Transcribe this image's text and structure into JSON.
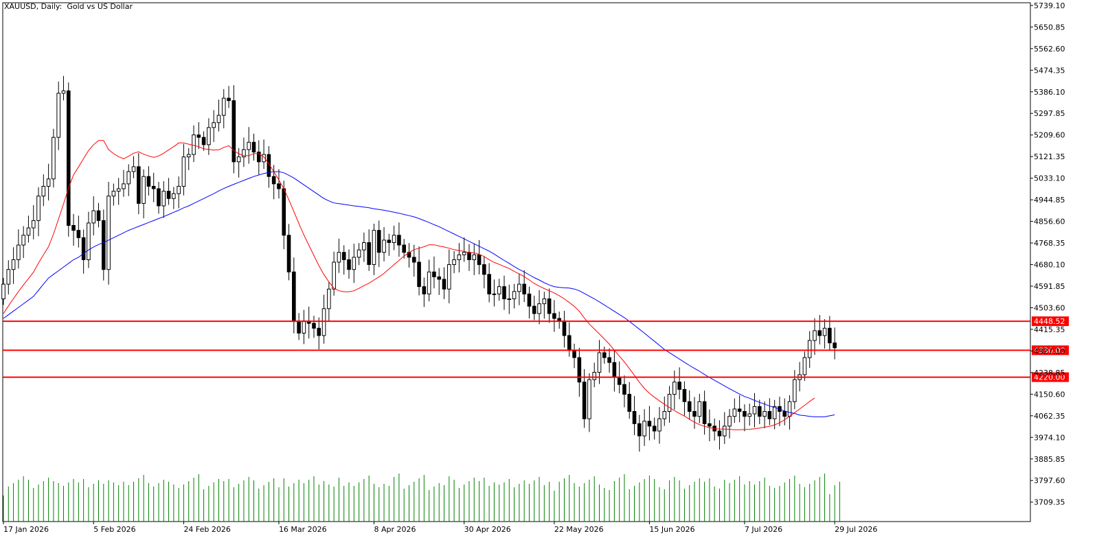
{
  "window": {
    "symbol_title": "XAUUSD, Daily:  Gold vs US Dollar"
  },
  "colors": {
    "background": "#ffffff",
    "frame": "#000000",
    "candle_bull_body": "#ffffff",
    "candle_bear_body": "#000000",
    "ma_fast": "#ff0000",
    "ma_slow": "#0000ff",
    "volume": "#008000",
    "level_line": "#ff0000",
    "level_label_bg": "#ff0000",
    "level_label_text": "#ffffff"
  },
  "chart_data": {
    "type": "candlestick",
    "symbol": "XAUUSD",
    "timeframe": "Daily",
    "ylim": [
      3630,
      5750
    ],
    "price_ticks": [
      5739.1,
      5650.85,
      5562.6,
      5474.35,
      5386.1,
      5297.85,
      5209.6,
      5121.35,
      5033.1,
      4944.85,
      4856.6,
      4768.35,
      4680.1,
      4591.85,
      4503.6,
      4415.35,
      4327.1,
      4238.85,
      4150.6,
      4062.35,
      3974.1,
      3885.85,
      3797.6,
      3709.35
    ],
    "price_tick_labels": [
      "5739.10",
      "5650.85",
      "5562.60",
      "5474.35",
      "5386.10",
      "5297.85",
      "5209.60",
      "5121.35",
      "5033.10",
      "4944.85",
      "4856.60",
      "4768.35",
      "4680.10",
      "4591.85",
      "4503.60",
      "4415.35",
      "4327.10",
      "4238.85",
      "4150.60",
      "4062.35",
      "3974.10",
      "3885.85",
      "3797.60",
      "3709.35"
    ],
    "date_ticks": [
      {
        "index": 0,
        "label": "17 Jan 2026"
      },
      {
        "index": 18,
        "label": "5 Feb 2026"
      },
      {
        "index": 36,
        "label": "24 Feb 2026"
      },
      {
        "index": 55,
        "label": "16 Mar 2026"
      },
      {
        "index": 74,
        "label": "8 Apr 2026"
      },
      {
        "index": 92,
        "label": "30 Apr 2026"
      },
      {
        "index": 110,
        "label": "22 May 2026"
      },
      {
        "index": 129,
        "label": "15 Jun 2026"
      },
      {
        "index": 148,
        "label": "7 Jul 2026"
      },
      {
        "index": 166,
        "label": "29 Jul 2026"
      }
    ],
    "closes": [
      4600,
      4660,
      4700,
      4760,
      4800,
      4830,
      4860,
      4960,
      5000,
      5030,
      5200,
      5380,
      5390,
      4840,
      4820,
      4790,
      4700,
      4850,
      4900,
      4860,
      4660,
      4960,
      4980,
      4990,
      5010,
      5060,
      5080,
      4930,
      5040,
      5000,
      4990,
      4920,
      4980,
      4950,
      4970,
      5000,
      5120,
      5130,
      5210,
      5200,
      5170,
      5240,
      5260,
      5290,
      5360,
      5350,
      5100,
      5120,
      5150,
      5180,
      5140,
      5100,
      5130,
      5040,
      5010,
      4990,
      4800,
      4650,
      4450,
      4400,
      4450,
      4440,
      4420,
      4390,
      4500,
      4580,
      4690,
      4730,
      4700,
      4660,
      4710,
      4740,
      4770,
      4680,
      4820,
      4730,
      4780,
      4770,
      4800,
      4760,
      4730,
      4710,
      4690,
      4590,
      4560,
      4650,
      4630,
      4620,
      4580,
      4680,
      4700,
      4720,
      4730,
      4700,
      4720,
      4680,
      4640,
      4560,
      4560,
      4590,
      4540,
      4540,
      4570,
      4600,
      4560,
      4510,
      4480,
      4520,
      4540,
      4480,
      4460,
      4450,
      4390,
      4330,
      4300,
      4200,
      4050,
      4210,
      4240,
      4320,
      4300,
      4280,
      4220,
      4190,
      4150,
      4080,
      4030,
      3980,
      4040,
      4020,
      4000,
      4050,
      4080,
      4150,
      4200,
      4170,
      4120,
      4080,
      4060,
      4120,
      4030,
      4020,
      4000,
      3980,
      4020,
      4060,
      4090,
      4080,
      4060,
      4070,
      4100,
      4060,
      4080,
      4050,
      4100,
      4080,
      4060,
      4120,
      4210,
      4230,
      4300,
      4370,
      4410,
      4390,
      4420,
      4360,
      4340
    ],
    "moving_averages": [
      {
        "name": "MA fast",
        "color": "#ff0000",
        "values": [
          4480,
          4511,
          4541,
          4570,
          4597,
          4623,
          4649,
          4686,
          4720,
          4753,
          4805,
          4866,
          4928,
          4993,
          5047,
          5079,
          5113,
          5146,
          5170,
          5187,
          5187,
          5150,
          5133,
          5121,
          5112,
          5123,
          5135,
          5141,
          5131,
          5124,
          5118,
          5124,
          5135,
          5149,
          5162,
          5177,
          5177,
          5172,
          5167,
          5162,
          5153,
          5151,
          5148,
          5149,
          5159,
          5166,
          5146,
          5133,
          5125,
          5125,
          5134,
          5133,
          5120,
          5091,
          5060,
          5026,
          4990,
          4945,
          4897,
          4848,
          4801,
          4759,
          4717,
          4675,
          4639,
          4609,
          4584,
          4573,
          4569,
          4569,
          4573,
          4583,
          4594,
          4604,
          4617,
          4630,
          4644,
          4662,
          4680,
          4697,
          4715,
          4729,
          4741,
          4747,
          4753,
          4761,
          4761,
          4756,
          4752,
          4747,
          4741,
          4737,
          4734,
          4729,
          4728,
          4722,
          4713,
          4700,
          4689,
          4681,
          4672,
          4664,
          4652,
          4642,
          4631,
          4617,
          4603,
          4592,
          4582,
          4573,
          4564,
          4553,
          4540,
          4525,
          4509,
          4489,
          4462,
          4437,
          4417,
          4397,
          4376,
          4355,
          4330,
          4306,
          4282,
          4255,
          4228,
          4199,
          4174,
          4154,
          4138,
          4123,
          4109,
          4096,
          4083,
          4072,
          4061,
          4048,
          4036,
          4026,
          4019,
          4014,
          4010,
          4008,
          4008,
          4007,
          4005,
          4005,
          4006,
          4007,
          4009,
          4012,
          4016,
          4019,
          4025,
          4034,
          4046,
          4060,
          4075,
          4090,
          4105,
          4121,
          4135
        ]
      },
      {
        "name": "MA slow",
        "color": "#0000ff",
        "values": [
          4460,
          4475,
          4490,
          4505,
          4520,
          4535,
          4550,
          4575,
          4600,
          4625,
          4640,
          4655,
          4670,
          4685,
          4700,
          4710,
          4725,
          4740,
          4752,
          4762,
          4770,
          4780,
          4790,
          4800,
          4810,
          4820,
          4828,
          4836,
          4844,
          4852,
          4860,
          4868,
          4876,
          4885,
          4894,
          4902,
          4912,
          4920,
          4930,
          4940,
          4950,
          4960,
          4970,
          4981,
          4991,
          5000,
          5008,
          5016,
          5024,
          5032,
          5040,
          5046,
          5052,
          5057,
          5060,
          5060,
          5055,
          5045,
          5034,
          5020,
          5006,
          4992,
          4978,
          4964,
          4950,
          4940,
          4932,
          4929,
          4926,
          4923,
          4920,
          4918,
          4915,
          4912,
          4908,
          4905,
          4902,
          4898,
          4894,
          4890,
          4885,
          4880,
          4875,
          4868,
          4860,
          4852,
          4843,
          4835,
          4825,
          4815,
          4805,
          4795,
          4785,
          4775,
          4765,
          4755,
          4745,
          4735,
          4723,
          4710,
          4697,
          4685,
          4672,
          4660,
          4650,
          4638,
          4627,
          4617,
          4606,
          4597,
          4590,
          4587,
          4585,
          4584,
          4580,
          4573,
          4562,
          4551,
          4540,
          4528,
          4515,
          4502,
          4489,
          4476,
          4463,
          4448,
          4432,
          4416,
          4400,
          4383,
          4367,
          4350,
          4333,
          4320,
          4307,
          4294,
          4281,
          4268,
          4256,
          4244,
          4231,
          4219,
          4207,
          4196,
          4184,
          4173,
          4162,
          4151,
          4141,
          4134,
          4125,
          4117,
          4110,
          4102,
          4096,
          4089,
          4082,
          4076,
          4072,
          4065,
          4063,
          4060,
          4058,
          4058,
          4058,
          4062,
          4066
        ]
      }
    ],
    "volume_bars": 168,
    "levels": [
      {
        "value": 4448.52,
        "label": "4448.52"
      },
      {
        "value": 4330.0,
        "label": "4330.00"
      },
      {
        "value": 4220.0,
        "label": "4220.00"
      }
    ]
  }
}
